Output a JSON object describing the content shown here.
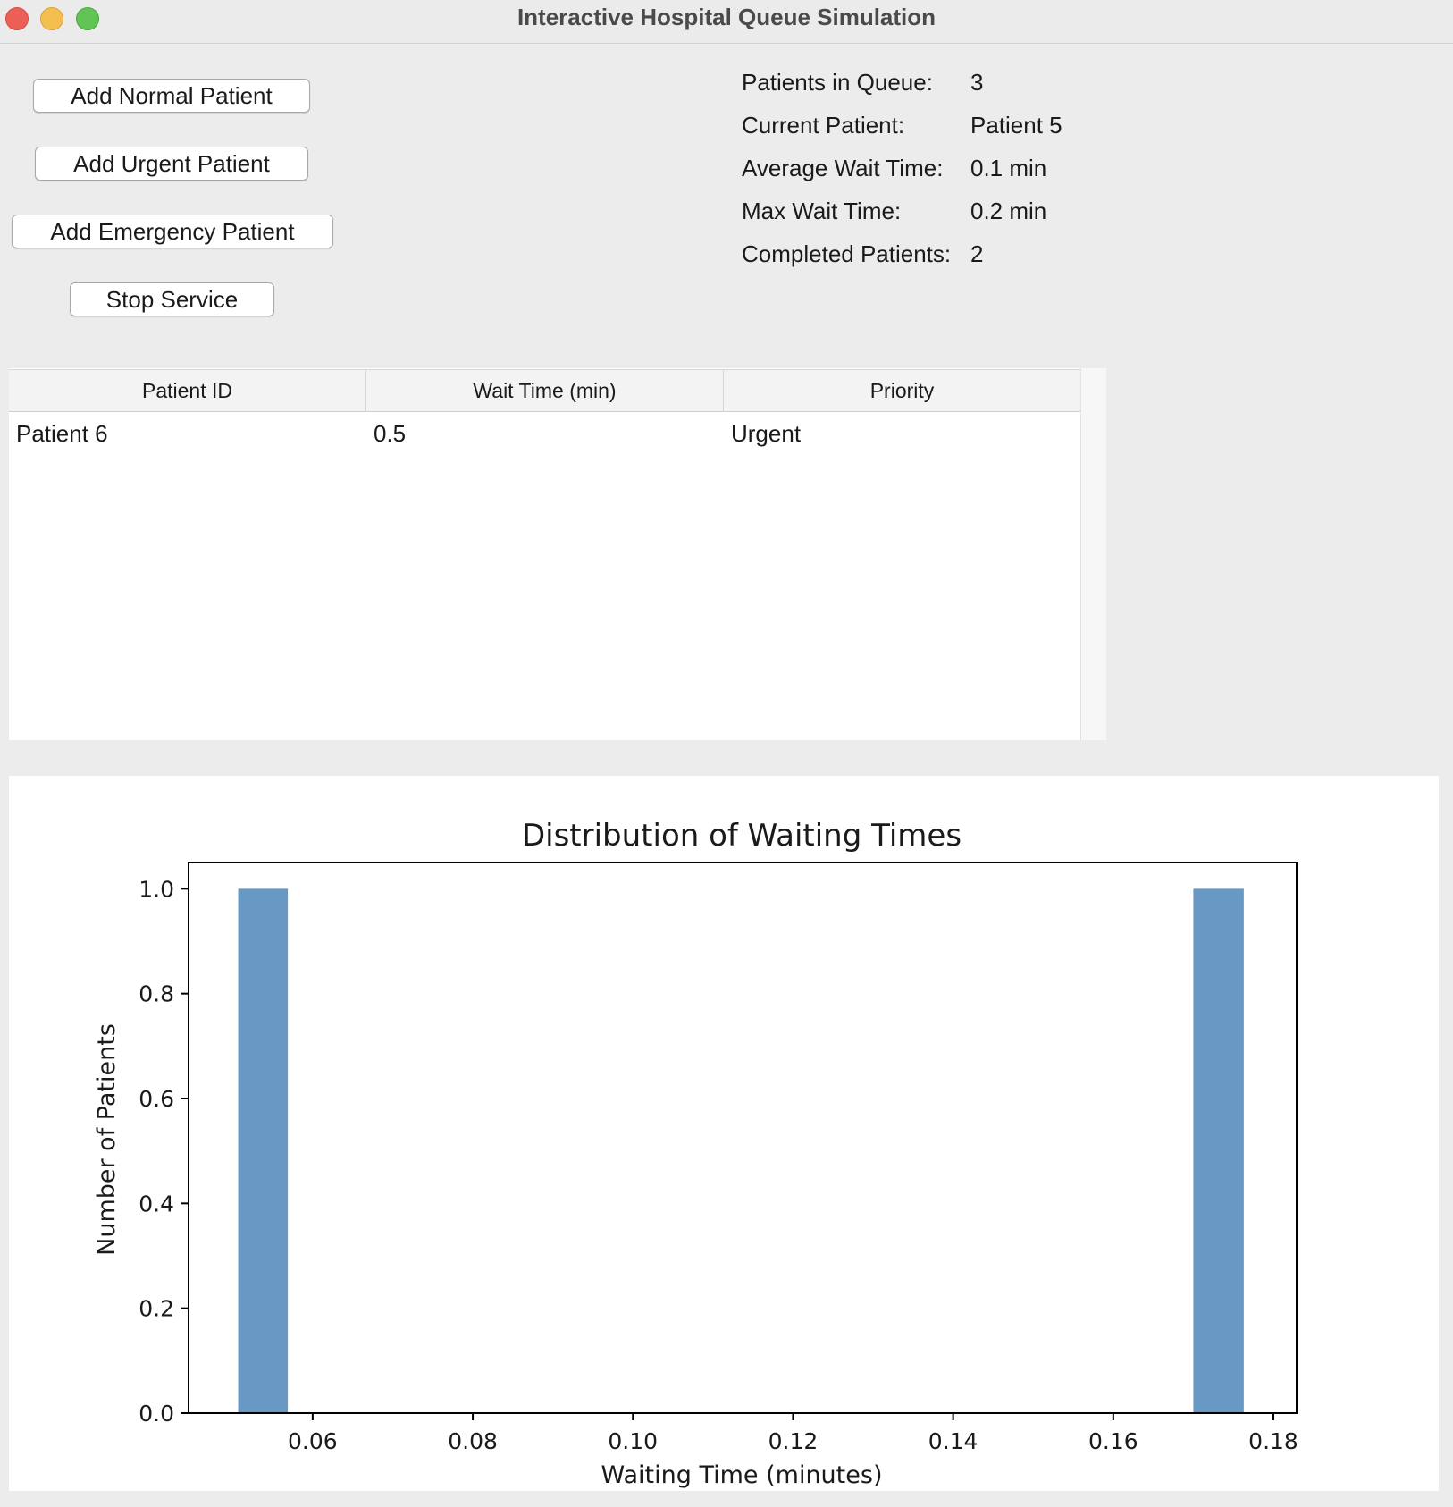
{
  "window": {
    "title": "Interactive Hospital Queue Simulation"
  },
  "buttons": {
    "add_normal": "Add Normal Patient",
    "add_urgent": "Add Urgent Patient",
    "add_emergency": "Add Emergency Patient",
    "stop_service": "Stop Service"
  },
  "stats": {
    "queue_label": "Patients in Queue:",
    "queue_value": "3",
    "current_label": "Current Patient:",
    "current_value": "Patient 5",
    "avg_label": "Average Wait Time:",
    "avg_value": "0.1 min",
    "max_label": "Max Wait Time:",
    "max_value": "0.2 min",
    "completed_label": "Completed Patients:",
    "completed_value": "2"
  },
  "table": {
    "columns": [
      "Patient ID",
      "Wait Time (min)",
      "Priority"
    ],
    "rows": [
      [
        "Patient 6",
        "0.5",
        "Urgent"
      ]
    ]
  },
  "chart_data": {
    "type": "bar",
    "title": "Distribution of Waiting Times",
    "xlabel": "Waiting Time (minutes)",
    "ylabel": "Number of Patients",
    "xlim": [
      0.0445,
      0.1829
    ],
    "ylim": [
      0,
      1.05
    ],
    "xticks": [
      "0.06",
      "0.08",
      "0.10",
      "0.12",
      "0.14",
      "0.16",
      "0.18"
    ],
    "xtick_values": [
      0.06,
      0.08,
      0.1,
      0.12,
      0.14,
      0.16,
      0.18
    ],
    "yticks": [
      "0.0",
      "0.2",
      "0.4",
      "0.6",
      "0.8",
      "1.0"
    ],
    "ytick_values": [
      0.0,
      0.2,
      0.4,
      0.6,
      0.8,
      1.0
    ],
    "bars": [
      {
        "x0": 0.0507,
        "x1": 0.0569,
        "value": 1
      },
      {
        "x0": 0.17,
        "x1": 0.1763,
        "value": 1
      }
    ],
    "bar_color": "#6899c4",
    "grid": false
  }
}
